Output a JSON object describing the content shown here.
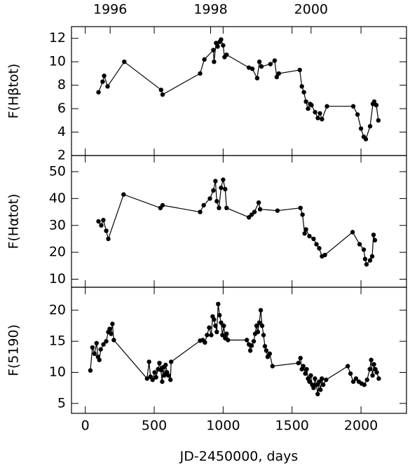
{
  "chart_data": [
    {
      "type": "line",
      "ylabel": "F(Hβtot)",
      "color": "#000000",
      "x2lim": [
        1995.23,
        2001.9
      ],
      "x2ticks": [
        1996,
        1998,
        2000
      ],
      "xlim": [
        -100,
        2330
      ],
      "ylim": [
        2,
        13
      ],
      "yticks": [
        2,
        4,
        6,
        8,
        10,
        12
      ],
      "x": [
        96,
        126,
        137,
        162,
        283,
        550,
        561,
        833,
        864,
        929,
        934,
        949,
        960,
        975,
        985,
        1000,
        1010,
        1025,
        1187,
        1212,
        1247,
        1263,
        1278,
        1343,
        1374,
        1389,
        1404,
        1556,
        1571,
        1586,
        1601,
        1616,
        1631,
        1641,
        1667,
        1687,
        1702,
        1717,
        1753,
        1944,
        1975,
        2000,
        2020,
        2035,
        2066,
        2086,
        2096,
        2111,
        2126
      ],
      "values": [
        7.4,
        8.3,
        8.8,
        7.9,
        10.0,
        7.6,
        7.2,
        9.0,
        10.2,
        11.0,
        10.0,
        11.6,
        11.3,
        11.7,
        11.9,
        11.4,
        10.4,
        10.6,
        9.5,
        9.4,
        8.6,
        10.0,
        9.6,
        9.8,
        10.1,
        8.7,
        9.0,
        9.3,
        7.9,
        7.4,
        6.6,
        6.0,
        6.4,
        6.3,
        5.7,
        5.2,
        5.6,
        5.1,
        6.2,
        6.2,
        5.5,
        4.3,
        3.6,
        3.4,
        4.5,
        6.4,
        6.6,
        6.3,
        5.0
      ]
    },
    {
      "type": "line",
      "ylabel": "F(Hαtot)",
      "color": "#000000",
      "xlim": [
        -100,
        2330
      ],
      "ylim": [
        7,
        56
      ],
      "yticks": [
        10,
        20,
        30,
        40,
        50
      ],
      "x": [
        96,
        116,
        131,
        152,
        167,
        278,
        545,
        561,
        833,
        859,
        904,
        929,
        944,
        954,
        970,
        985,
        1000,
        1015,
        1025,
        1187,
        1207,
        1227,
        1258,
        1268,
        1394,
        1561,
        1576,
        1591,
        1601,
        1626,
        1656,
        1677,
        1697,
        1717,
        1738,
        1939,
        1990,
        2020,
        2030,
        2040,
        2066,
        2081,
        2091,
        2101
      ],
      "values": [
        31.5,
        30.0,
        32.0,
        28.0,
        25.0,
        41.5,
        36.5,
        37.5,
        35.0,
        37.5,
        40.0,
        43.0,
        46.5,
        39.0,
        36.5,
        44.0,
        47.0,
        43.5,
        36.5,
        33.0,
        34.0,
        35.0,
        38.5,
        36.0,
        35.5,
        36.5,
        34.0,
        27.0,
        28.5,
        26.0,
        25.0,
        23.0,
        21.5,
        18.5,
        19.0,
        27.5,
        23.0,
        21.0,
        17.5,
        15.5,
        17.0,
        18.5,
        26.5,
        24.5
      ]
    },
    {
      "type": "line",
      "ylabel": "F(5190)",
      "color": "#000000",
      "xlabel": "JD-2450000, days",
      "xlim": [
        -100,
        2330
      ],
      "xticks": [
        0,
        500,
        1000,
        1500,
        2000
      ],
      "ylim": [
        3.4,
        23.7
      ],
      "yticks": [
        5,
        10,
        15,
        20
      ],
      "x": [
        37,
        52,
        67,
        82,
        92,
        102,
        112,
        132,
        152,
        167,
        177,
        187,
        197,
        207,
        448,
        463,
        473,
        488,
        503,
        513,
        528,
        538,
        548,
        558,
        563,
        573,
        583,
        593,
        603,
        618,
        623,
        833,
        853,
        868,
        883,
        899,
        914,
        924,
        934,
        944,
        954,
        964,
        974,
        985,
        995,
        1005,
        1015,
        1025,
        1035,
        1172,
        1187,
        1197,
        1207,
        1222,
        1232,
        1242,
        1252,
        1262,
        1273,
        1283,
        1293,
        1303,
        1313,
        1323,
        1338,
        1358,
        1546,
        1561,
        1571,
        1581,
        1596,
        1606,
        1616,
        1626,
        1636,
        1646,
        1656,
        1666,
        1676,
        1686,
        1696,
        1706,
        1716,
        1726,
        1747,
        1904,
        1924,
        1944,
        1964,
        1984,
        2004,
        2024,
        2044,
        2064,
        2074,
        2084,
        2094,
        2104,
        2114,
        2129
      ],
      "values": [
        10.3,
        14.0,
        13.0,
        14.7,
        12.5,
        12.0,
        13.7,
        14.5,
        15.0,
        16.5,
        17.0,
        16.2,
        17.8,
        15.2,
        9.0,
        11.7,
        9.3,
        8.8,
        10.0,
        9.2,
        10.5,
        11.5,
        10.4,
        8.5,
        10.8,
        9.5,
        11.2,
        10.0,
        9.5,
        8.8,
        11.7,
        15.1,
        15.2,
        14.8,
        16.0,
        17.2,
        16.0,
        19.0,
        18.5,
        17.5,
        16.5,
        21.0,
        19.2,
        18.0,
        16.0,
        17.5,
        15.5,
        16.2,
        15.2,
        15.2,
        14.5,
        13.5,
        14.3,
        15.0,
        16.2,
        17.5,
        16.5,
        18.0,
        20.0,
        17.5,
        16.0,
        14.2,
        13.5,
        12.5,
        13.0,
        11.0,
        11.5,
        12.3,
        10.5,
        11.0,
        9.8,
        10.5,
        9.0,
        8.5,
        9.5,
        8.0,
        7.5,
        9.0,
        8.0,
        6.5,
        8.5,
        7.2,
        9.0,
        8.0,
        8.8,
        11.0,
        9.8,
        8.5,
        9.0,
        8.5,
        8.2,
        8.0,
        8.8,
        10.5,
        12.0,
        9.5,
        11.3,
        10.5,
        10.0,
        9.0
      ]
    }
  ]
}
